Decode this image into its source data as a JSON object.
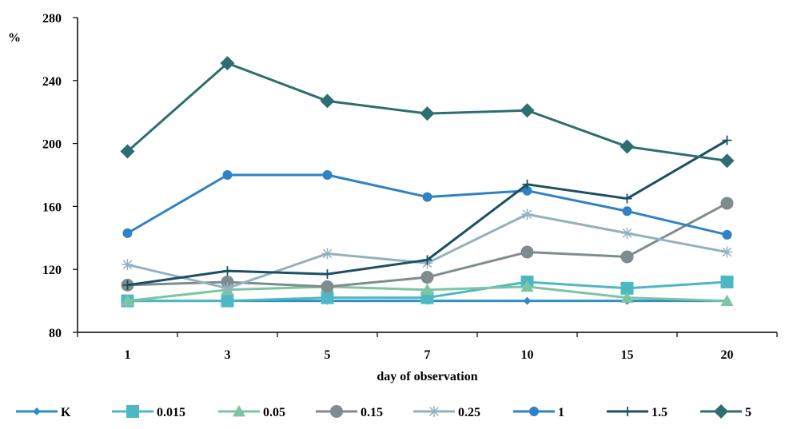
{
  "chart_data": {
    "type": "line",
    "ylabel": "%",
    "xlabel": "day of observation",
    "categories": [
      "1",
      "3",
      "5",
      "7",
      "10",
      "15",
      "20"
    ],
    "yticks": [
      80,
      120,
      160,
      200,
      240,
      280
    ],
    "ylim": [
      80,
      280
    ],
    "grid": false,
    "legend_position": "bottom",
    "series": [
      {
        "name": "K",
        "values": [
          100,
          100,
          100,
          100,
          100,
          100,
          100
        ],
        "marker": "diamond-small",
        "color": "#2E8FC6"
      },
      {
        "name": "0.015",
        "values": [
          100,
          100,
          102,
          102,
          112,
          108,
          112
        ],
        "marker": "square",
        "color": "#4DB8C4"
      },
      {
        "name": "0.05",
        "values": [
          100,
          107,
          109,
          107,
          109,
          102,
          100
        ],
        "marker": "triangle",
        "color": "#7CC4A4"
      },
      {
        "name": "0.15",
        "values": [
          110,
          112,
          109,
          115,
          131,
          128,
          162
        ],
        "marker": "circle",
        "color": "#7F8C8D"
      },
      {
        "name": "0.25",
        "values": [
          123,
          108,
          130,
          124,
          155,
          143,
          131
        ],
        "marker": "star",
        "color": "#93B1BE"
      },
      {
        "name": "1",
        "values": [
          143,
          180,
          180,
          166,
          170,
          157,
          142
        ],
        "marker": "circle-small",
        "color": "#2F82C4"
      },
      {
        "name": "1.5",
        "values": [
          110,
          119,
          117,
          126,
          174,
          165,
          202
        ],
        "marker": "plus",
        "color": "#1D4F63"
      },
      {
        "name": "5",
        "values": [
          195,
          251,
          227,
          219,
          221,
          198,
          189
        ],
        "marker": "diamond",
        "color": "#2E6E70"
      }
    ]
  }
}
